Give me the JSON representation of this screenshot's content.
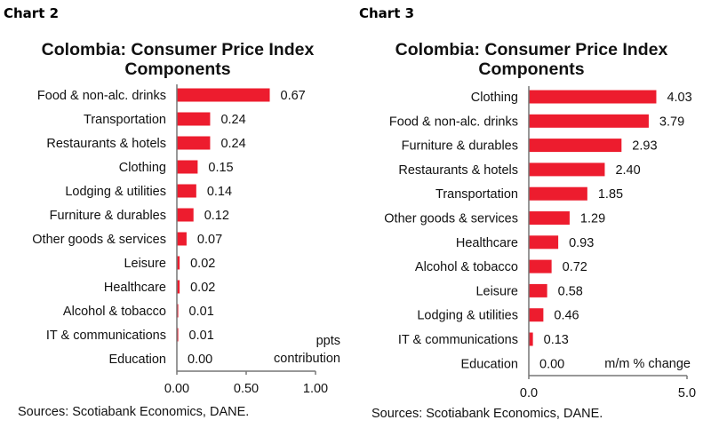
{
  "chart_data": [
    {
      "type": "bar",
      "orientation": "horizontal",
      "header": "Chart 2",
      "title": "Colombia: Consumer Price Index Components",
      "title_lines": [
        "Colombia: Consumer Price Index",
        "Components"
      ],
      "categories": [
        "Food & non-alc. drinks",
        "Transportation",
        "Restaurants & hotels",
        "Clothing",
        "Lodging & utilities",
        "Furniture & durables",
        "Other goods & services",
        "Leisure",
        "Healthcare",
        "Alcohol & tobacco",
        "IT & communications",
        "Education"
      ],
      "values": [
        0.67,
        0.24,
        0.24,
        0.15,
        0.14,
        0.12,
        0.07,
        0.02,
        0.02,
        0.01,
        0.01,
        0.0
      ],
      "data_labels": [
        "0.67",
        "0.24",
        "0.24",
        "0.15",
        "0.14",
        "0.12",
        "0.07",
        "0.02",
        "0.02",
        "0.01",
        "0.01",
        "0.00"
      ],
      "xlim": [
        0,
        1.0
      ],
      "xticks": [
        "0.00",
        "0.50",
        "1.00"
      ],
      "unit_label": [
        "ppts",
        "contribution"
      ],
      "source": "Sources: Scotiabank Economics, DANE.",
      "bar_color": "#ED1C2E",
      "grid": false
    },
    {
      "type": "bar",
      "orientation": "horizontal",
      "header": "Chart 3",
      "title": "Colombia: Consumer Price Index Components",
      "title_lines": [
        "Colombia: Consumer Price Index",
        "Components"
      ],
      "categories": [
        "Clothing",
        "Food & non-alc. drinks",
        "Furniture & durables",
        "Restaurants & hotels",
        "Transportation",
        "Other goods & services",
        "Healthcare",
        "Alcohol & tobacco",
        "Leisure",
        "Lodging & utilities",
        "IT & communications",
        "Education"
      ],
      "values": [
        4.03,
        3.79,
        2.93,
        2.4,
        1.85,
        1.29,
        0.93,
        0.72,
        0.58,
        0.46,
        0.13,
        0.0
      ],
      "data_labels": [
        "4.03",
        "3.79",
        "2.93",
        "2.40",
        "1.85",
        "1.29",
        "0.93",
        "0.72",
        "0.58",
        "0.46",
        "0.13",
        "0.00"
      ],
      "xlim": [
        0,
        5.0
      ],
      "xticks": [
        "0.0",
        "5.0"
      ],
      "unit_label": [
        "m/m % change"
      ],
      "source": "Sources: Scotiabank Economics, DANE.",
      "bar_color": "#ED1C2E",
      "grid": false
    }
  ]
}
